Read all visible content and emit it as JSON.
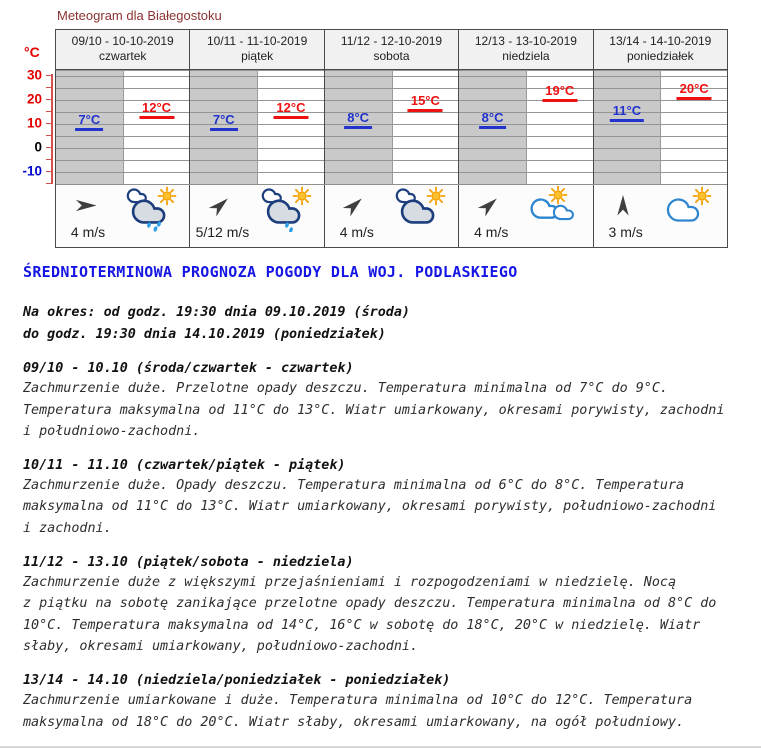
{
  "page": {
    "title": "Meteogram dla Białegostoku"
  },
  "chart_data": {
    "type": "table",
    "title": "Meteogram dla Białegostoku",
    "ylabel": "°C",
    "ylim": [
      -15,
      32.5
    ],
    "y_ticks": [
      "30",
      "20",
      "10",
      "0",
      "-10"
    ],
    "grid": "horizontal gridlines every 5°C; night half of each day shaded gray",
    "categories": [
      "09/10 - 10-10-2019 (czwartek)",
      "10/11 - 11-10-2019 (piątek)",
      "11/12 - 12-10-2019 (sobota)",
      "12/13 - 13-10-2019 (niedziela)",
      "13/14 - 14-10-2019 (poniedziałek)"
    ],
    "series": [
      {
        "name": "temperatura minimalna (noc)",
        "values": [
          7,
          7,
          8,
          8,
          11
        ]
      },
      {
        "name": "temperatura maksymalna (dzień)",
        "values": [
          12,
          12,
          15,
          19,
          20
        ]
      },
      {
        "name": "wiatr",
        "values": [
          "4 m/s",
          "5/12 m/s",
          "4 m/s",
          "4 m/s",
          "3 m/s"
        ]
      }
    ]
  },
  "meteogram": {
    "days": [
      {
        "date": "09/10 - 10-10-2019",
        "weekday": "czwartek",
        "t_min": "7°C",
        "t_max": "12°C",
        "wind_speed": "4 m/s",
        "wind_dir": "E",
        "icon": "sun-cloud-rain"
      },
      {
        "date": "10/11 - 11-10-2019",
        "weekday": "piątek",
        "t_min": "7°C",
        "t_max": "12°C",
        "wind_speed": "5/12 m/s",
        "wind_dir": "NE",
        "icon": "sun-cloud-rain"
      },
      {
        "date": "11/12 - 12-10-2019",
        "weekday": "sobota",
        "t_min": "8°C",
        "t_max": "15°C",
        "wind_speed": "4 m/s",
        "wind_dir": "NE",
        "icon": "sun-cloud"
      },
      {
        "date": "12/13 - 13-10-2019",
        "weekday": "niedziela",
        "t_min": "8°C",
        "t_max": "19°C",
        "wind_speed": "4 m/s",
        "wind_dir": "NE",
        "icon": "sun-two-clouds"
      },
      {
        "date": "13/14 - 14-10-2019",
        "weekday": "poniedziałek",
        "t_min": "11°C",
        "t_max": "20°C",
        "wind_speed": "3 m/s",
        "wind_dir": "N",
        "icon": "sun-behind-cloud"
      }
    ]
  },
  "forecast": {
    "title": "ŚREDNIOTERMINOWA PROGNOZA POGODY DLA WOJ. PODLASKIEGO",
    "period": "Na okres: od godz. 19:30 dnia 09.10.2019 (środa)\ndo godz. 19:30 dnia 14.10.2019 (poniedziałek)",
    "sections": [
      {
        "heading": "09/10 - 10.10 (środa/czwartek - czwartek)",
        "body": "Zachmurzenie duże. Przelotne opady deszczu. Temperatura minimalna od 7°C do 9°C.\nTemperatura maksymalna od 11°C do 13°C. Wiatr umiarkowany, okresami porywisty, zachodni\ni południowo-zachodni."
      },
      {
        "heading": "10/11 - 11.10 (czwartek/piątek - piątek)",
        "body": "Zachmurzenie duże. Opady deszczu. Temperatura minimalna od 6°C do 8°C. Temperatura\nmaksymalna od 11°C do 13°C. Wiatr umiarkowany, okresami porywisty, południowo-zachodni\ni zachodni."
      },
      {
        "heading": "11/12 - 13.10 (piątek/sobota - niedziela)",
        "body": "Zachmurzenie duże z większymi przejaśnieniami i rozpogodzeniami w niedzielę. Nocą\nz piątku na sobotę zanikające przelotne opady deszczu. Temperatura minimalna od 8°C do\n10°C. Temperatura maksymalna od 14°C, 16°C w sobotę do 18°C, 20°C w niedzielę. Wiatr\nsłaby, okresami umiarkowany, południowo-zachodni."
      },
      {
        "heading": "13/14 - 14.10 (niedziela/poniedziałek - poniedziałek)",
        "body": "Zachmurzenie umiarkowane i duże. Temperatura minimalna od 10°C do 12°C. Temperatura\nmaksymalna od 18°C do 20°C. Wiatr słaby, okresami umiarkowany, na ogół południowy."
      }
    ]
  },
  "colors": {
    "meteogram_title": "#8b3232",
    "forecast_title_blue": "#1515e6",
    "temp_min_blue": "#2233cc",
    "temp_max_red": "#ee1111",
    "axis_red": "#d45050",
    "night_shade": "#c9c9c9"
  }
}
